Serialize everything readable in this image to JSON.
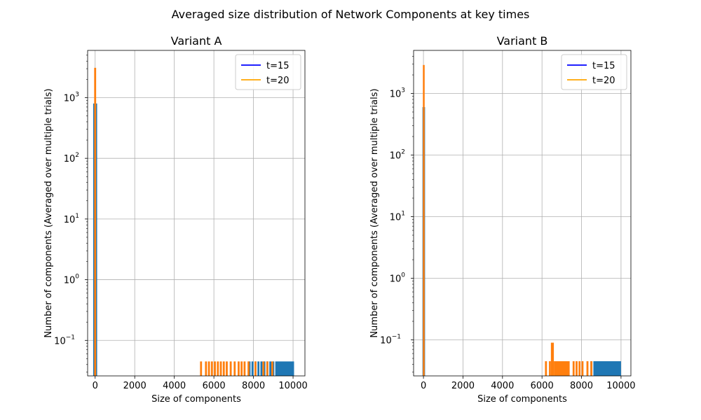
{
  "figure": {
    "suptitle": "Averaged size distribution of Network Components at key times"
  },
  "chart_data": [
    {
      "type": "bar",
      "title": "Variant A",
      "xlabel": "Size of components",
      "ylabel": "Number of components (Averaged over multiple trials)",
      "yscale": "log",
      "ylim": [
        0.026,
        6000
      ],
      "xlim": [
        -380,
        10600
      ],
      "xticks": [
        0,
        2000,
        4000,
        6000,
        8000,
        10000
      ],
      "yticks": [
        {
          "base": "10",
          "exp": "−1",
          "value": 0.1
        },
        {
          "base": "10",
          "exp": "0",
          "value": 1
        },
        {
          "base": "10",
          "exp": "1",
          "value": 10
        },
        {
          "base": "10",
          "exp": "2",
          "value": 100
        },
        {
          "base": "10",
          "exp": "3",
          "value": 1000
        }
      ],
      "grid": true,
      "legend_position": "top-right",
      "legend": [
        {
          "label": "t=15",
          "color": "#0000ff"
        },
        {
          "label": "t=20",
          "color": "#ffa500"
        }
      ],
      "series": [
        {
          "color": "#1f77b4",
          "bars": [
            {
              "x0": -100,
              "x1": 100,
              "y": 800
            },
            {
              "x0": 7750,
              "x1": 7850,
              "y": 0.045
            },
            {
              "x0": 7900,
              "x1": 8000,
              "y": 0.045
            },
            {
              "x0": 8050,
              "x1": 8150,
              "y": 0.045
            },
            {
              "x0": 8200,
              "x1": 8300,
              "y": 0.045
            },
            {
              "x0": 8350,
              "x1": 8450,
              "y": 0.045
            },
            {
              "x0": 8500,
              "x1": 8600,
              "y": 0.045
            },
            {
              "x0": 8650,
              "x1": 8750,
              "y": 0.045
            },
            {
              "x0": 8800,
              "x1": 8900,
              "y": 0.045
            },
            {
              "x0": 8950,
              "x1": 9050,
              "y": 0.045
            },
            {
              "x0": 9100,
              "x1": 10050,
              "y": 0.045
            }
          ]
        },
        {
          "color": "#ff7f0e",
          "bars": [
            {
              "x0": -50,
              "x1": 50,
              "y": 3100
            },
            {
              "x0": 5300,
              "x1": 5400,
              "y": 0.045
            },
            {
              "x0": 5550,
              "x1": 5650,
              "y": 0.045
            },
            {
              "x0": 5700,
              "x1": 5800,
              "y": 0.045
            },
            {
              "x0": 5850,
              "x1": 5950,
              "y": 0.045
            },
            {
              "x0": 6000,
              "x1": 6100,
              "y": 0.045
            },
            {
              "x0": 6150,
              "x1": 6250,
              "y": 0.045
            },
            {
              "x0": 6300,
              "x1": 6400,
              "y": 0.045
            },
            {
              "x0": 6450,
              "x1": 6550,
              "y": 0.045
            },
            {
              "x0": 6600,
              "x1": 6700,
              "y": 0.045
            },
            {
              "x0": 6800,
              "x1": 6900,
              "y": 0.045
            },
            {
              "x0": 7000,
              "x1": 7100,
              "y": 0.045
            },
            {
              "x0": 7200,
              "x1": 7300,
              "y": 0.045
            },
            {
              "x0": 7350,
              "x1": 7450,
              "y": 0.045
            },
            {
              "x0": 7500,
              "x1": 7600,
              "y": 0.045
            },
            {
              "x0": 7700,
              "x1": 7800,
              "y": 0.045
            },
            {
              "x0": 8050,
              "x1": 8150,
              "y": 0.045
            },
            {
              "x0": 8450,
              "x1": 8550,
              "y": 0.045
            },
            {
              "x0": 8650,
              "x1": 8750,
              "y": 0.045
            },
            {
              "x0": 8900,
              "x1": 9000,
              "y": 0.045
            }
          ]
        }
      ]
    },
    {
      "type": "bar",
      "title": "Variant B",
      "xlabel": "Size of components",
      "ylabel": "Number of components (Averaged over multiple trials)",
      "yscale": "log",
      "ylim": [
        0.026,
        5000
      ],
      "xlim": [
        -500,
        10500
      ],
      "xticks": [
        0,
        2000,
        4000,
        6000,
        8000,
        10000
      ],
      "yticks": [
        {
          "base": "10",
          "exp": "−1",
          "value": 0.1
        },
        {
          "base": "10",
          "exp": "0",
          "value": 1
        },
        {
          "base": "10",
          "exp": "1",
          "value": 10
        },
        {
          "base": "10",
          "exp": "2",
          "value": 100
        },
        {
          "base": "10",
          "exp": "3",
          "value": 1000
        }
      ],
      "grid": true,
      "legend_position": "top-right",
      "legend": [
        {
          "label": "t=15",
          "color": "#0000ff"
        },
        {
          "label": "t=20",
          "color": "#ffa500"
        }
      ],
      "series": [
        {
          "color": "#1f77b4",
          "bars": [
            {
              "x0": -50,
              "x1": 80,
              "y": 600
            },
            {
              "x0": 8450,
              "x1": 8550,
              "y": 0.045
            },
            {
              "x0": 8600,
              "x1": 10000,
              "y": 0.045
            }
          ]
        },
        {
          "color": "#ff7f0e",
          "bars": [
            {
              "x0": -30,
              "x1": 60,
              "y": 2900
            },
            {
              "x0": 6150,
              "x1": 6250,
              "y": 0.045
            },
            {
              "x0": 6350,
              "x1": 6450,
              "y": 0.045
            },
            {
              "x0": 6450,
              "x1": 6600,
              "y": 0.09
            },
            {
              "x0": 6600,
              "x1": 7400,
              "y": 0.045
            },
            {
              "x0": 7550,
              "x1": 7650,
              "y": 0.045
            },
            {
              "x0": 7700,
              "x1": 7800,
              "y": 0.045
            },
            {
              "x0": 7850,
              "x1": 7950,
              "y": 0.045
            },
            {
              "x0": 8000,
              "x1": 8100,
              "y": 0.045
            },
            {
              "x0": 8250,
              "x1": 8350,
              "y": 0.045
            },
            {
              "x0": 8450,
              "x1": 8550,
              "y": 0.045
            }
          ]
        }
      ]
    }
  ]
}
